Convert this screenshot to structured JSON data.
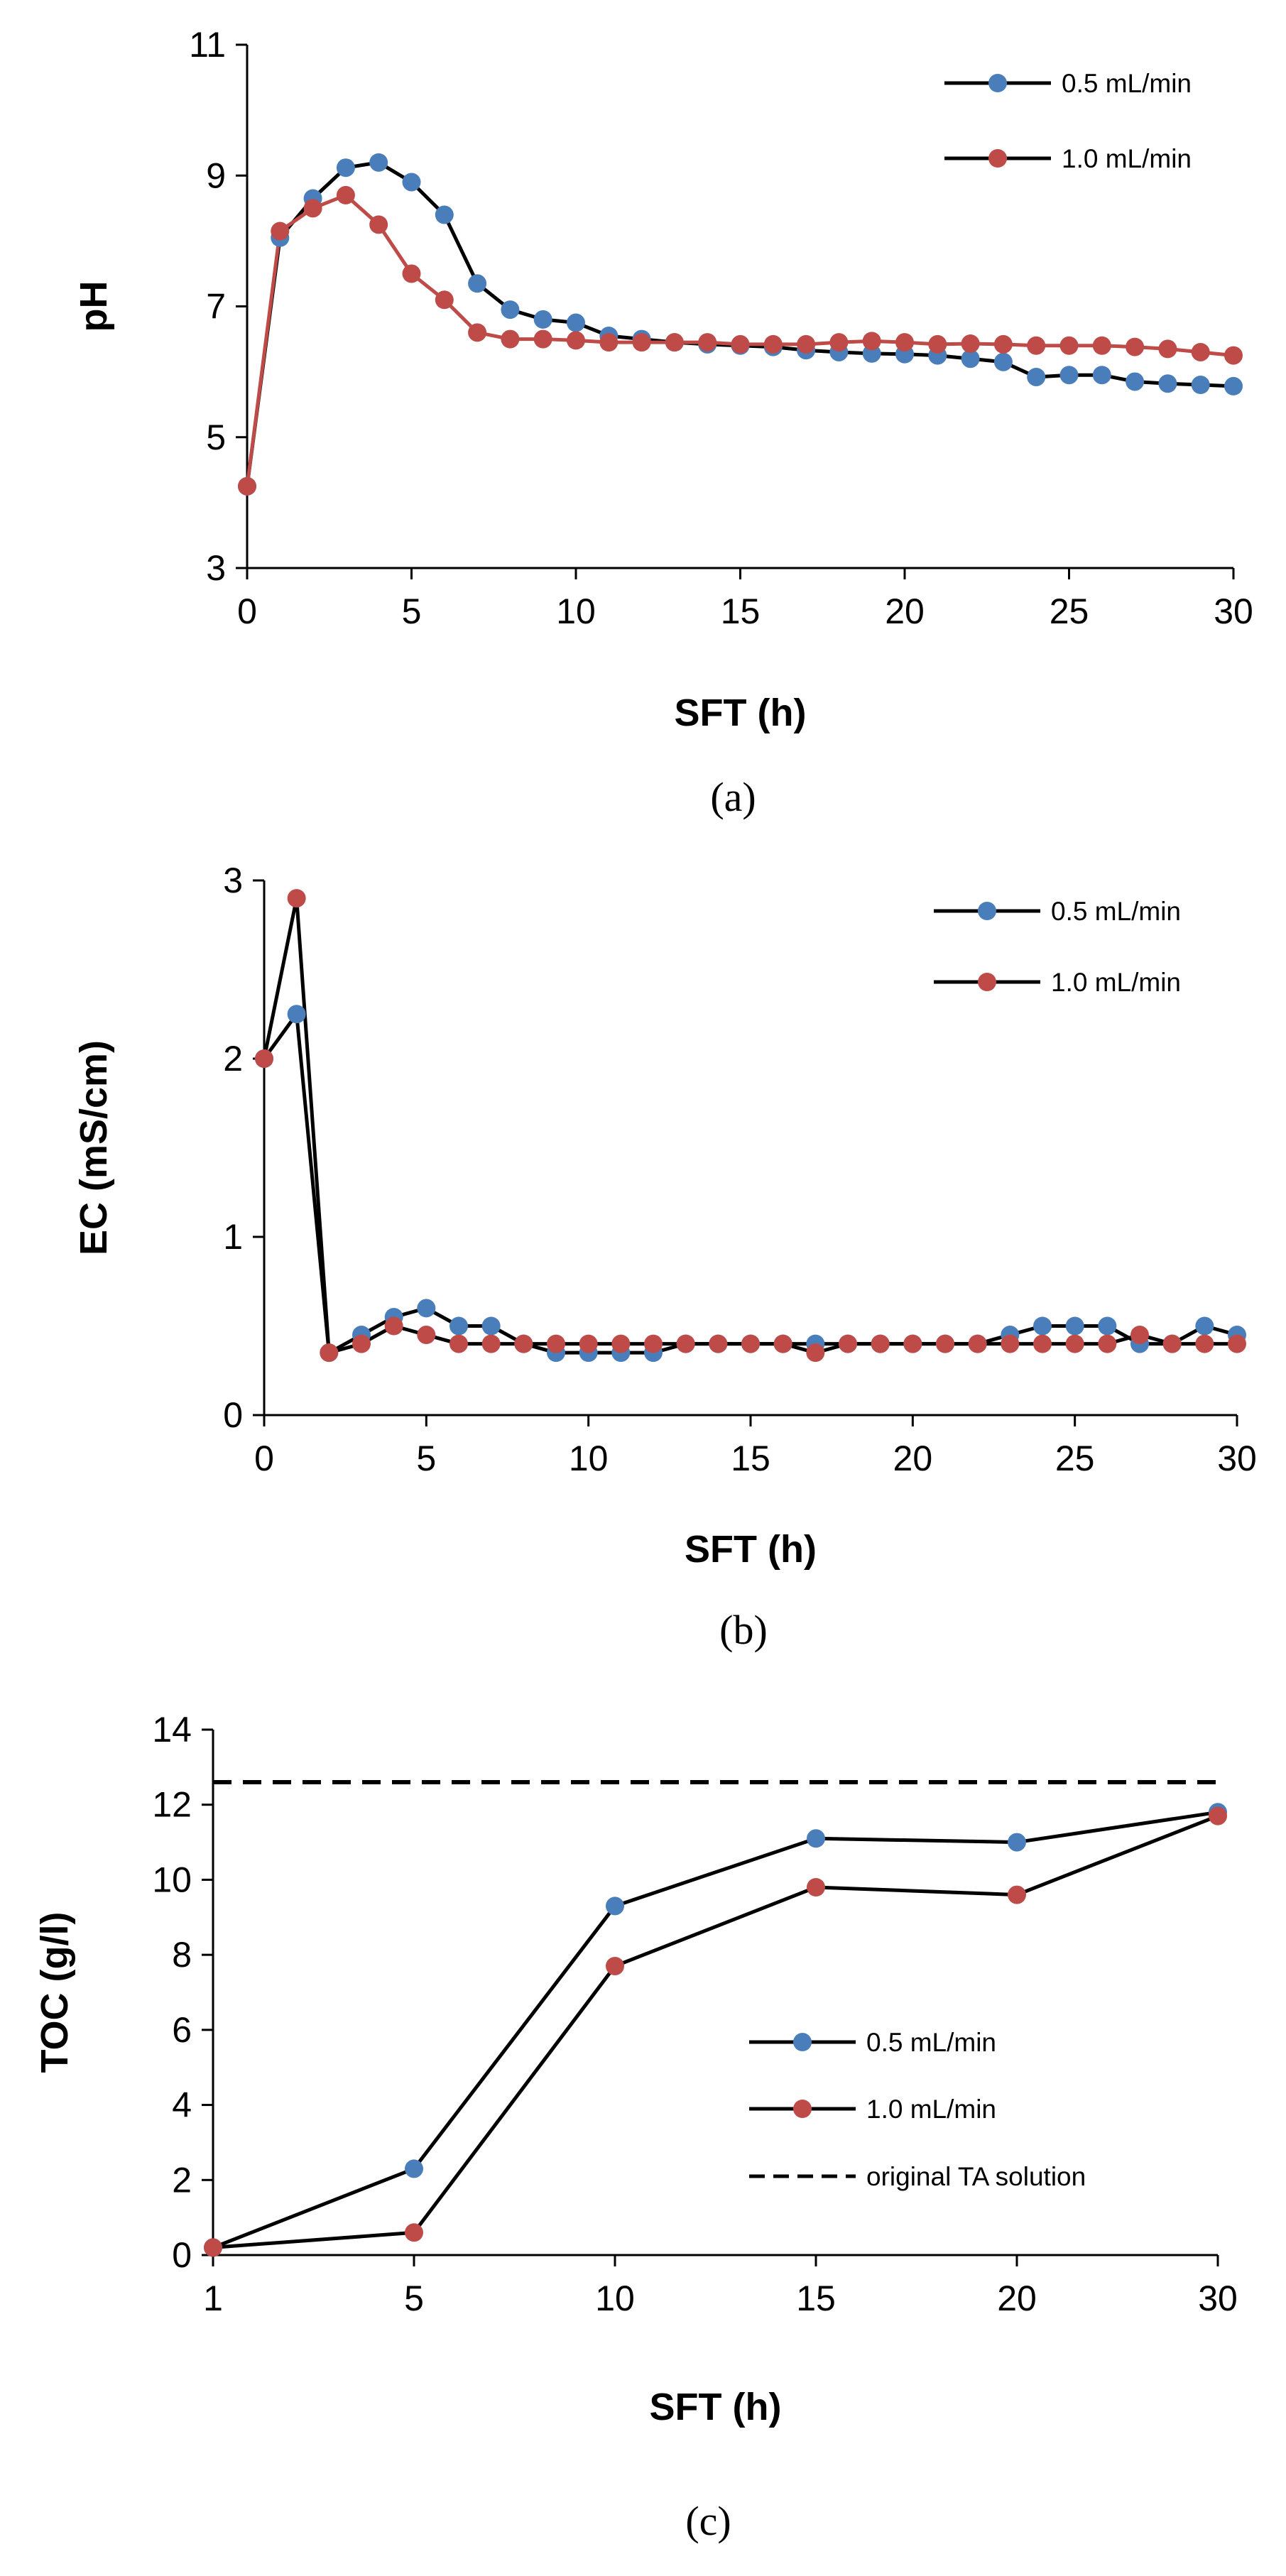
{
  "colors": {
    "series_a": "#4a7ebb",
    "series_b": "#be4b48",
    "line": "#000000",
    "axis": "#000000"
  },
  "chart_data": [
    {
      "id": "a",
      "type": "line",
      "caption": "(a)",
      "xlabel": "SFT (h)",
      "ylabel": "pH",
      "xlim": [
        0,
        30
      ],
      "ylim": [
        3,
        11
      ],
      "xticks": [
        "0",
        "5",
        "10",
        "15",
        "20",
        "25",
        "30"
      ],
      "yticks": [
        "3",
        "5",
        "7",
        "9",
        "11"
      ],
      "legend": [
        "0.5 mL/min",
        "1.0 mL/min"
      ],
      "series": [
        {
          "name": "0.5 mL/min",
          "x": [
            0,
            1,
            2,
            3,
            4,
            5,
            6,
            7,
            8,
            9,
            10,
            11,
            12,
            13,
            14,
            15,
            16,
            17,
            18,
            19,
            20,
            21,
            22,
            23,
            24,
            25,
            26,
            27,
            28,
            29,
            30
          ],
          "values": [
            4.25,
            8.05,
            8.65,
            9.12,
            9.2,
            8.9,
            8.4,
            7.35,
            6.95,
            6.8,
            6.75,
            6.55,
            6.5,
            6.45,
            6.42,
            6.4,
            6.38,
            6.33,
            6.3,
            6.28,
            6.27,
            6.25,
            6.2,
            6.15,
            5.92,
            5.95,
            5.95,
            5.85,
            5.82,
            5.8,
            5.78
          ]
        },
        {
          "name": "1.0 mL/min",
          "x": [
            0,
            1,
            2,
            3,
            4,
            5,
            6,
            7,
            8,
            9,
            10,
            11,
            12,
            13,
            14,
            15,
            16,
            17,
            18,
            19,
            20,
            21,
            22,
            23,
            24,
            25,
            26,
            27,
            28,
            29,
            30
          ],
          "values": [
            4.25,
            8.15,
            8.5,
            8.7,
            8.25,
            7.5,
            7.1,
            6.6,
            6.5,
            6.5,
            6.48,
            6.45,
            6.45,
            6.45,
            6.45,
            6.42,
            6.42,
            6.42,
            6.45,
            6.47,
            6.45,
            6.42,
            6.43,
            6.42,
            6.4,
            6.4,
            6.4,
            6.38,
            6.35,
            6.3,
            6.25
          ]
        }
      ]
    },
    {
      "id": "b",
      "type": "line",
      "caption": "(b)",
      "xlabel": "SFT (h)",
      "ylabel": "EC (mS/cm)",
      "xlim": [
        0,
        30
      ],
      "ylim": [
        0,
        3
      ],
      "xticks": [
        "0",
        "5",
        "10",
        "15",
        "20",
        "25",
        "30"
      ],
      "yticks": [
        "0",
        "1",
        "2",
        "3"
      ],
      "legend": [
        "0.5 mL/min",
        "1.0 mL/min"
      ],
      "series": [
        {
          "name": "0.5 mL/min",
          "x": [
            0,
            1,
            2,
            3,
            4,
            5,
            6,
            7,
            8,
            9,
            10,
            11,
            12,
            13,
            14,
            15,
            16,
            17,
            18,
            19,
            20,
            21,
            22,
            23,
            24,
            25,
            26,
            27,
            28,
            29,
            30
          ],
          "values": [
            2.0,
            2.25,
            0.35,
            0.45,
            0.55,
            0.6,
            0.5,
            0.5,
            0.4,
            0.35,
            0.35,
            0.35,
            0.35,
            0.4,
            0.4,
            0.4,
            0.4,
            0.4,
            0.4,
            0.4,
            0.4,
            0.4,
            0.4,
            0.45,
            0.5,
            0.5,
            0.5,
            0.4,
            0.4,
            0.5,
            0.45
          ]
        },
        {
          "name": "1.0 mL/min",
          "x": [
            0,
            1,
            2,
            3,
            4,
            5,
            6,
            7,
            8,
            9,
            10,
            11,
            12,
            13,
            14,
            15,
            16,
            17,
            18,
            19,
            20,
            21,
            22,
            23,
            24,
            25,
            26,
            27,
            28,
            29,
            30
          ],
          "values": [
            2.0,
            2.9,
            0.35,
            0.4,
            0.5,
            0.45,
            0.4,
            0.4,
            0.4,
            0.4,
            0.4,
            0.4,
            0.4,
            0.4,
            0.4,
            0.4,
            0.4,
            0.35,
            0.4,
            0.4,
            0.4,
            0.4,
            0.4,
            0.4,
            0.4,
            0.4,
            0.4,
            0.45,
            0.4,
            0.4,
            0.4
          ]
        }
      ]
    },
    {
      "id": "c",
      "type": "line",
      "caption": "(c)",
      "xlabel": "SFT (h)",
      "ylabel": "TOC (g/l)",
      "categories": [
        "1",
        "5",
        "10",
        "15",
        "20",
        "30"
      ],
      "ylim": [
        0,
        14
      ],
      "yticks": [
        "0",
        "2",
        "4",
        "6",
        "8",
        "10",
        "12",
        "14"
      ],
      "legend": [
        "0.5 mL/min",
        "1.0 mL/min",
        "original TA solution"
      ],
      "reference_line": {
        "name": "original TA solution",
        "value": 12.6
      },
      "series": [
        {
          "name": "0.5 mL/min",
          "values": [
            0.2,
            2.3,
            9.3,
            11.1,
            11.0,
            11.8
          ]
        },
        {
          "name": "1.0 mL/min",
          "values": [
            0.2,
            0.6,
            7.7,
            9.8,
            9.6,
            11.7
          ]
        }
      ]
    }
  ]
}
